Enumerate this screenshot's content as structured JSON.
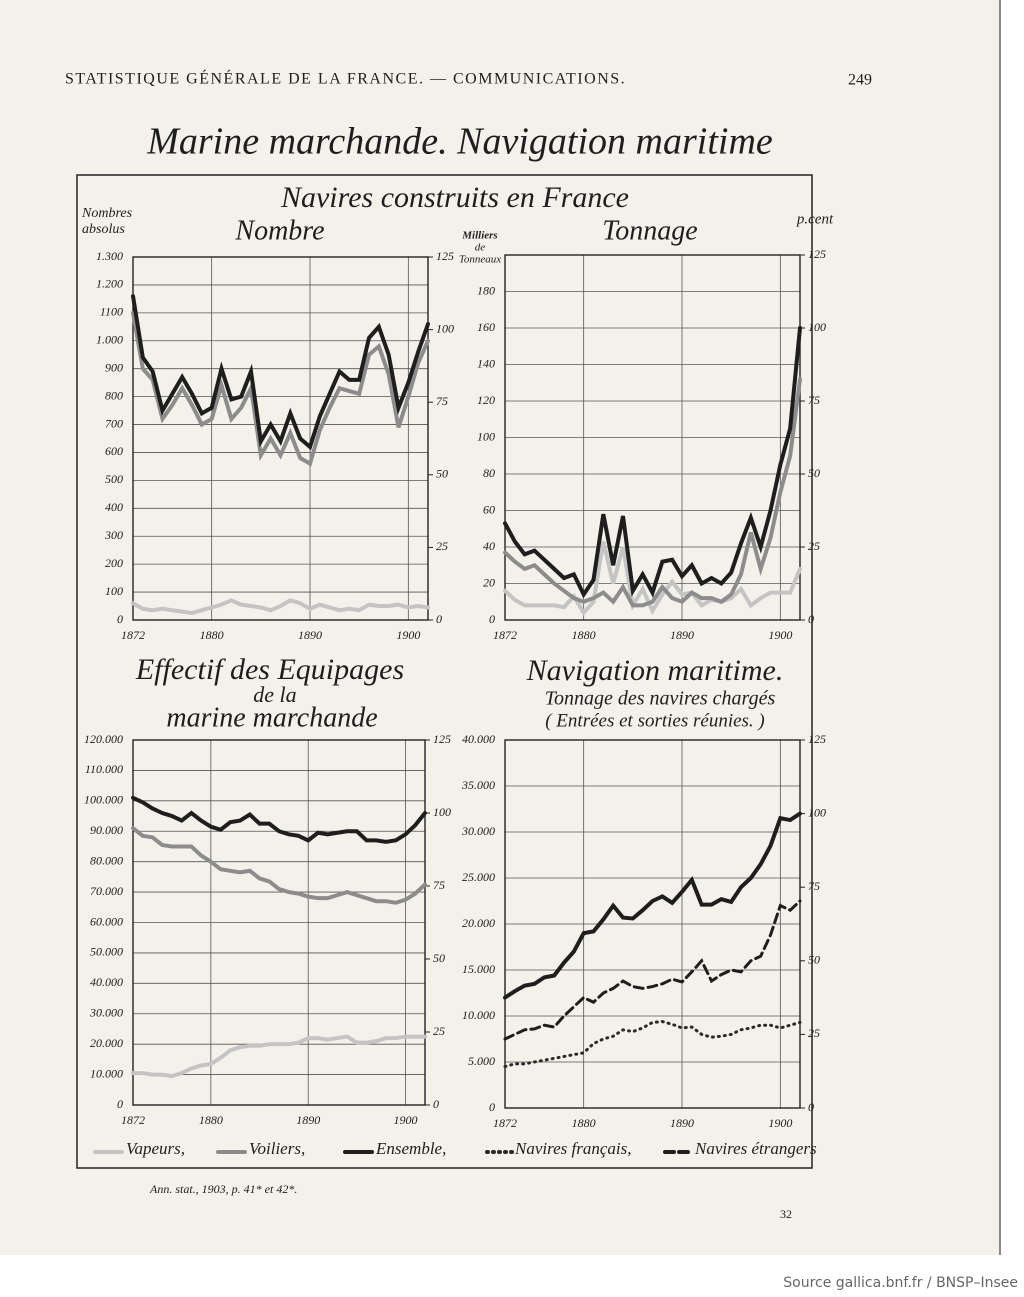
{
  "header": "STATISTIQUE GÉNÉRALE DE LA FRANCE. — COMMUNICATIONS.",
  "page_number": "249",
  "title": "Marine marchande. Navigation maritime",
  "section_title": "Navires construits en France",
  "source": "Ann. stat., 1903, p. 41* et 42*.",
  "footer": "32",
  "credit": "Source gallica.bnf.fr / BNSP–Insee",
  "chart_data": [
    {
      "type": "line",
      "title": [
        "Nombre"
      ],
      "ylabel": [
        "Nombres",
        "absolus"
      ],
      "x": [
        1872,
        1873,
        1874,
        1875,
        1876,
        1877,
        1878,
        1879,
        1880,
        1881,
        1882,
        1883,
        1884,
        1885,
        1886,
        1887,
        1888,
        1889,
        1890,
        1891,
        1892,
        1893,
        1894,
        1895,
        1896,
        1897,
        1898,
        1899,
        1900,
        1901,
        1902
      ],
      "xlim": [
        1872,
        1902
      ],
      "xticks": [
        1872,
        1880,
        1890,
        1900
      ],
      "ylim": [
        0,
        1300
      ],
      "yticks": [
        0,
        100,
        200,
        300,
        400,
        500,
        600,
        700,
        800,
        900,
        {
          "value": 1000,
          "label": "1.000"
        },
        {
          "value": 1100,
          "label": "1100"
        },
        {
          "value": 1200,
          "label": "1.200"
        },
        {
          "value": 1300,
          "label": "1.300"
        }
      ],
      "y2lim": [
        0,
        125
      ],
      "y2ticks": [
        0,
        25,
        50,
        75,
        100,
        125
      ],
      "grid": true,
      "series": [
        {
          "name": "Vapeurs,",
          "color": "#c4c4c4",
          "line_style": "solid",
          "values": [
            60,
            40,
            35,
            40,
            35,
            30,
            25,
            35,
            45,
            55,
            70,
            55,
            50,
            45,
            35,
            50,
            70,
            60,
            40,
            55,
            45,
            35,
            40,
            35,
            55,
            50,
            50,
            55,
            45,
            50,
            45
          ]
        },
        {
          "name": "Voiliers,",
          "color": "#8c8c8c",
          "line_style": "solid",
          "values": [
            1100,
            900,
            860,
            720,
            770,
            830,
            770,
            700,
            720,
            840,
            720,
            760,
            830,
            590,
            650,
            590,
            670,
            580,
            560,
            680,
            760,
            830,
            820,
            810,
            950,
            980,
            880,
            690,
            800,
            920,
            1000
          ]
        },
        {
          "name": "Ensemble,",
          "color": "#1e1e1e",
          "line_style": "solid",
          "values": [
            1160,
            940,
            890,
            750,
            810,
            870,
            810,
            740,
            760,
            900,
            790,
            800,
            890,
            640,
            700,
            640,
            740,
            650,
            620,
            730,
            810,
            890,
            860,
            860,
            1010,
            1050,
            950,
            760,
            850,
            960,
            1060
          ]
        }
      ]
    },
    {
      "type": "line",
      "title": [
        "Tonnage"
      ],
      "ylabel": [
        "Milliers",
        "de",
        "Tonneaux"
      ],
      "y2label": "p.cent",
      "x": [
        1872,
        1873,
        1874,
        1875,
        1876,
        1877,
        1878,
        1879,
        1880,
        1881,
        1882,
        1883,
        1884,
        1885,
        1886,
        1887,
        1888,
        1889,
        1890,
        1891,
        1892,
        1893,
        1894,
        1895,
        1896,
        1897,
        1898,
        1899,
        1900,
        1901,
        1902
      ],
      "xlim": [
        1872,
        1902
      ],
      "xticks": [
        1872,
        1880,
        1890,
        1900
      ],
      "ylim": [
        0,
        200
      ],
      "yticks": [
        0,
        20,
        40,
        60,
        80,
        100,
        120,
        140,
        160,
        180
      ],
      "y2lim": [
        0,
        125
      ],
      "y2ticks": [
        0,
        25,
        50,
        75,
        100,
        125
      ],
      "grid": true,
      "series": [
        {
          "name": "Vapeurs,",
          "color": "#c4c4c4",
          "line_style": "solid",
          "values": [
            16,
            11,
            8,
            8,
            8,
            8,
            7,
            13,
            4,
            10,
            43,
            20,
            40,
            8,
            17,
            5,
            14,
            21,
            14,
            15,
            8,
            11,
            10,
            12,
            17,
            8,
            12,
            15,
            15,
            15,
            28
          ]
        },
        {
          "name": "Voiliers,",
          "color": "#8c8c8c",
          "line_style": "solid",
          "values": [
            37,
            32,
            28,
            30,
            25,
            20,
            16,
            12,
            10,
            12,
            15,
            10,
            18,
            8,
            8,
            10,
            18,
            12,
            10,
            15,
            12,
            12,
            10,
            14,
            25,
            48,
            28,
            45,
            70,
            90,
            132
          ]
        },
        {
          "name": "Ensemble,",
          "color": "#1e1e1e",
          "line_style": "solid",
          "values": [
            53,
            43,
            36,
            38,
            33,
            28,
            23,
            25,
            14,
            22,
            58,
            30,
            57,
            16,
            25,
            15,
            32,
            33,
            24,
            30,
            20,
            23,
            20,
            26,
            42,
            56,
            40,
            60,
            85,
            105,
            160
          ]
        }
      ]
    },
    {
      "type": "line",
      "title": [
        "Effectif des Equipages",
        "de la",
        "marine marchande"
      ],
      "x": [
        1872,
        1873,
        1874,
        1875,
        1876,
        1877,
        1878,
        1879,
        1880,
        1881,
        1882,
        1883,
        1884,
        1885,
        1886,
        1887,
        1888,
        1889,
        1890,
        1891,
        1892,
        1893,
        1894,
        1895,
        1896,
        1897,
        1898,
        1899,
        1900,
        1901,
        1902
      ],
      "xlim": [
        1872,
        1902
      ],
      "xticks": [
        1872,
        1880,
        1890,
        1900
      ],
      "ylim": [
        0,
        120000
      ],
      "yticks": [
        0,
        {
          "value": 10000,
          "label": "10.000"
        },
        {
          "value": 20000,
          "label": "20.000"
        },
        {
          "value": 30000,
          "label": "30.000"
        },
        {
          "value": 40000,
          "label": "40.000"
        },
        {
          "value": 50000,
          "label": "50.000"
        },
        {
          "value": 60000,
          "label": "60.000"
        },
        {
          "value": 70000,
          "label": "70.000"
        },
        {
          "value": 80000,
          "label": "80.000"
        },
        {
          "value": 90000,
          "label": "90.000"
        },
        {
          "value": 100000,
          "label": "100.000"
        },
        {
          "value": 110000,
          "label": "110.000"
        },
        {
          "value": 120000,
          "label": "120.000"
        }
      ],
      "y2lim": [
        0,
        125
      ],
      "y2ticks": [
        0,
        25,
        50,
        75,
        100,
        125
      ],
      "grid": true,
      "series": [
        {
          "name": "Vapeurs,",
          "color": "#c4c4c4",
          "line_style": "solid",
          "values": [
            10500,
            10500,
            10000,
            10000,
            9500,
            10500,
            12000,
            13000,
            13500,
            15500,
            18000,
            19000,
            19500,
            19500,
            20000,
            20000,
            20000,
            20500,
            22000,
            22000,
            21500,
            22000,
            22500,
            20500,
            20500,
            21000,
            22000,
            22000,
            22500,
            22500,
            22500
          ]
        },
        {
          "name": "Voiliers,",
          "color": "#8c8c8c",
          "line_style": "solid",
          "values": [
            91000,
            88500,
            88000,
            85500,
            85000,
            85000,
            85000,
            82000,
            80000,
            77500,
            77000,
            76500,
            77000,
            74500,
            73500,
            71000,
            70000,
            69500,
            68500,
            68000,
            68000,
            69000,
            70000,
            69000,
            68000,
            67000,
            67000,
            66500,
            67500,
            69500,
            72500
          ]
        },
        {
          "name": "Ensemble,",
          "color": "#1e1e1e",
          "line_style": "solid",
          "values": [
            101000,
            99500,
            97500,
            96000,
            95000,
            93500,
            96000,
            93500,
            91500,
            90500,
            93000,
            93500,
            95500,
            92500,
            92500,
            90000,
            89000,
            88500,
            87000,
            89500,
            89000,
            89500,
            90000,
            90000,
            87000,
            87000,
            86500,
            87000,
            89000,
            92000,
            96000
          ]
        }
      ]
    },
    {
      "type": "line",
      "title": [
        "Navigation maritime."
      ],
      "subtitle": [
        "Tonnage des navires chargés",
        "( Entrées et sorties réunies. )"
      ],
      "x": [
        1872,
        1873,
        1874,
        1875,
        1876,
        1877,
        1878,
        1879,
        1880,
        1881,
        1882,
        1883,
        1884,
        1885,
        1886,
        1887,
        1888,
        1889,
        1890,
        1891,
        1892,
        1893,
        1894,
        1895,
        1896,
        1897,
        1898,
        1899,
        1900,
        1901,
        1902
      ],
      "xlim": [
        1872,
        1902
      ],
      "xticks": [
        1872,
        1880,
        1890,
        1900
      ],
      "ylim": [
        0,
        40000
      ],
      "yticks": [
        0,
        {
          "value": 5000,
          "label": "5.000"
        },
        {
          "value": 10000,
          "label": "10.000"
        },
        {
          "value": 15000,
          "label": "15.000"
        },
        {
          "value": 20000,
          "label": "20.000"
        },
        {
          "value": 25000,
          "label": "25.000"
        },
        {
          "value": 30000,
          "label": "30.000"
        },
        {
          "value": 35000,
          "label": "35.000"
        },
        {
          "value": 40000,
          "label": "40.000"
        }
      ],
      "y2lim": [
        0,
        125
      ],
      "y2ticks": [
        0,
        25,
        50,
        75,
        100,
        125
      ],
      "grid": true,
      "series": [
        {
          "name": "Ensemble,",
          "color": "#1e1e1e",
          "line_style": "solid",
          "values": [
            12000,
            12700,
            13300,
            13500,
            14200,
            14400,
            15800,
            17000,
            19000,
            19200,
            20500,
            22000,
            20700,
            20600,
            21500,
            22500,
            23000,
            22300,
            23500,
            24800,
            22100,
            22100,
            22700,
            22400,
            24000,
            25000,
            26500,
            28500,
            31500,
            31300,
            32000
          ]
        },
        {
          "name": "Navires français,",
          "color": "#2a2a2a",
          "line_style": "dotted",
          "values": [
            4500,
            4800,
            4800,
            5000,
            5200,
            5400,
            5600,
            5800,
            6000,
            7000,
            7500,
            7800,
            8500,
            8300,
            8700,
            9300,
            9400,
            9100,
            8700,
            8800,
            8000,
            7700,
            7800,
            8000,
            8500,
            8700,
            9000,
            9000,
            8700,
            9000,
            9300
          ]
        },
        {
          "name": "Navires étrangers",
          "color": "#1e1e1e",
          "line_style": "dashed",
          "values": [
            7500,
            8000,
            8500,
            8600,
            9000,
            8800,
            10000,
            11000,
            12000,
            11500,
            12500,
            13000,
            13800,
            13200,
            13000,
            13200,
            13500,
            14000,
            13700,
            14800,
            16000,
            13800,
            14500,
            15000,
            14800,
            16000,
            16500,
            18800,
            22000,
            21500,
            22500
          ]
        }
      ]
    }
  ]
}
